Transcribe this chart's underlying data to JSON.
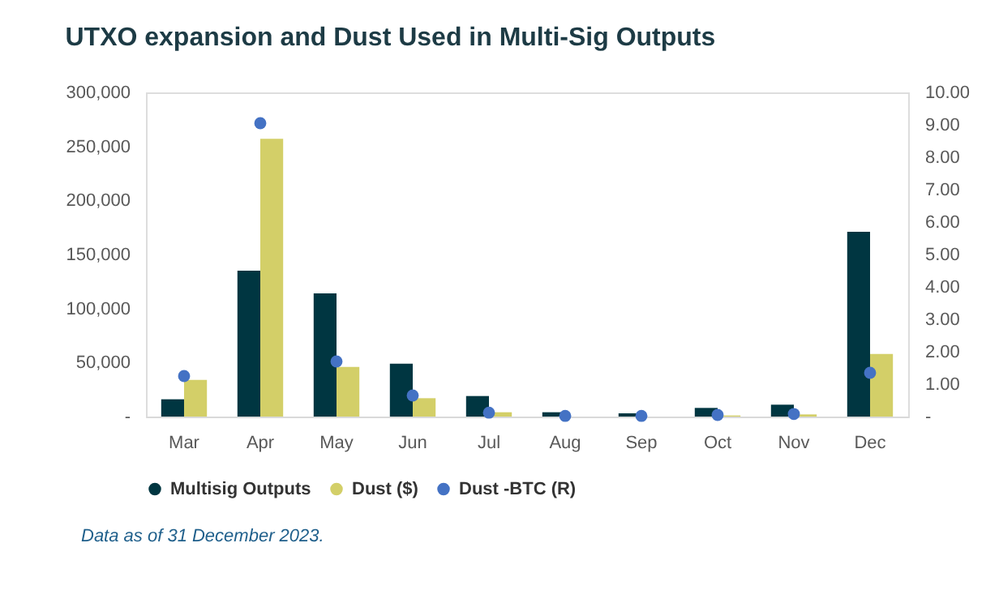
{
  "chart_data": {
    "type": "bar",
    "title": "UTXO expansion and Dust Used in Multi-Sig Outputs",
    "categories": [
      "Mar",
      "Apr",
      "May",
      "Jun",
      "Jul",
      "Aug",
      "Sep",
      "Oct",
      "Nov",
      "Dec"
    ],
    "series": [
      {
        "name": "Multisig Outputs",
        "color": "#003641",
        "values": [
          16000,
          135000,
          114000,
          49000,
          19000,
          4000,
          3000,
          8000,
          11000,
          171000
        ]
      },
      {
        "name": "Dust ($)",
        "color": "#d3cf68",
        "values": [
          34000,
          257000,
          46000,
          17000,
          4000,
          0,
          0,
          1000,
          2000,
          58000
        ]
      },
      {
        "name": "Dust -BTC (R)",
        "color": "#4472c4",
        "type": "scatter",
        "axis": "y2",
        "marker": "circle",
        "values": [
          1.25,
          9.05,
          1.7,
          0.65,
          0.12,
          0.02,
          0.02,
          0.05,
          0.08,
          1.35
        ]
      }
    ],
    "ylim": [
      0,
      300000
    ],
    "yticks": [
      {
        "value": 0,
        "label": "-"
      },
      {
        "value": 50000,
        "label": "50,000"
      },
      {
        "value": 100000,
        "label": "100,000"
      },
      {
        "value": 150000,
        "label": "150,000"
      },
      {
        "value": 200000,
        "label": "200,000"
      },
      {
        "value": 250000,
        "label": "250,000"
      },
      {
        "value": 300000,
        "label": "300,000"
      }
    ],
    "y2lim": [
      0,
      10
    ],
    "y2ticks": [
      {
        "value": 0,
        "label": "-"
      },
      {
        "value": 1,
        "label": "1.00"
      },
      {
        "value": 2,
        "label": "2.00"
      },
      {
        "value": 3,
        "label": "3.00"
      },
      {
        "value": 4,
        "label": "4.00"
      },
      {
        "value": 5,
        "label": "5.00"
      },
      {
        "value": 6,
        "label": "6.00"
      },
      {
        "value": 7,
        "label": "7.00"
      },
      {
        "value": 8,
        "label": "8.00"
      },
      {
        "value": 9,
        "label": "9.00"
      },
      {
        "value": 10,
        "label": "10.00"
      }
    ],
    "grid": false,
    "legend": "bottom",
    "annotations": [
      "Data as of 31 December 2023."
    ]
  }
}
